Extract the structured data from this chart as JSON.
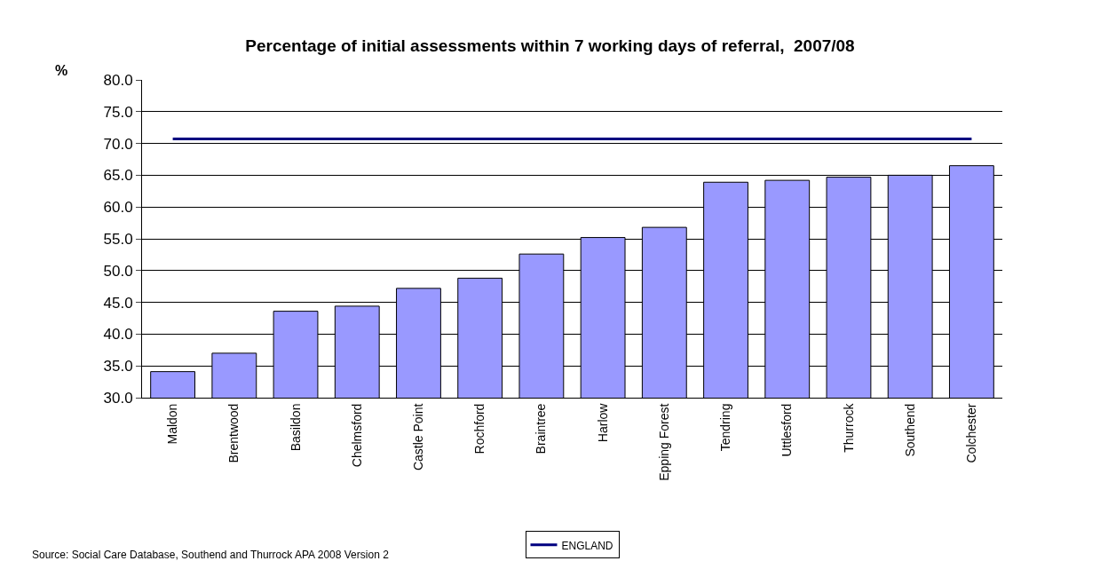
{
  "chart_data": {
    "type": "bar",
    "title": "Percentage of initial assessments within 7 working days of referral,  2007/08",
    "ylabel": "%",
    "categories": [
      "Maldon",
      "Brentwood",
      "Basildon",
      "Chelmsford",
      "Castle Point",
      "Rochford",
      "Braintree",
      "Harlow",
      "Epping Forest",
      "Tendring",
      "Uttlesford",
      "Thurrock",
      "Southend",
      "Colchester"
    ],
    "series": [
      {
        "color": "#9999ff",
        "values": [
          34.1,
          37.0,
          43.6,
          44.4,
          47.2,
          48.8,
          52.6,
          55.2,
          56.8,
          63.9,
          64.2,
          64.7,
          65.0,
          66.5
        ]
      },
      {
        "type": "line",
        "name": "ENGLAND",
        "color": "#000080",
        "values": [
          70.7,
          70.7,
          70.7,
          70.7,
          70.7,
          70.7,
          70.7,
          70.7,
          70.7,
          70.7,
          70.7,
          70.7,
          70.7,
          70.7
        ]
      }
    ],
    "ylim": [
      30,
      80
    ],
    "yticks": [
      {
        "value": 30,
        "label": "30.0"
      },
      {
        "value": 35,
        "label": "35.0"
      },
      {
        "value": 40,
        "label": "40.0"
      },
      {
        "value": 45,
        "label": "45.0"
      },
      {
        "value": 50,
        "label": "50.0"
      },
      {
        "value": 55,
        "label": "55.0"
      },
      {
        "value": 60,
        "label": "60.0"
      },
      {
        "value": 65,
        "label": "65.0"
      },
      {
        "value": 70,
        "label": "70.0"
      },
      {
        "value": 75,
        "label": "75.0"
      },
      {
        "value": 80,
        "label": "80.0"
      }
    ],
    "grid": "y",
    "legend": "bottom",
    "line_style": "solid",
    "marker": "none",
    "annotations": [
      "Source: Social Care Database, Southend and Thurrock APA 2008 Version 2"
    ]
  }
}
